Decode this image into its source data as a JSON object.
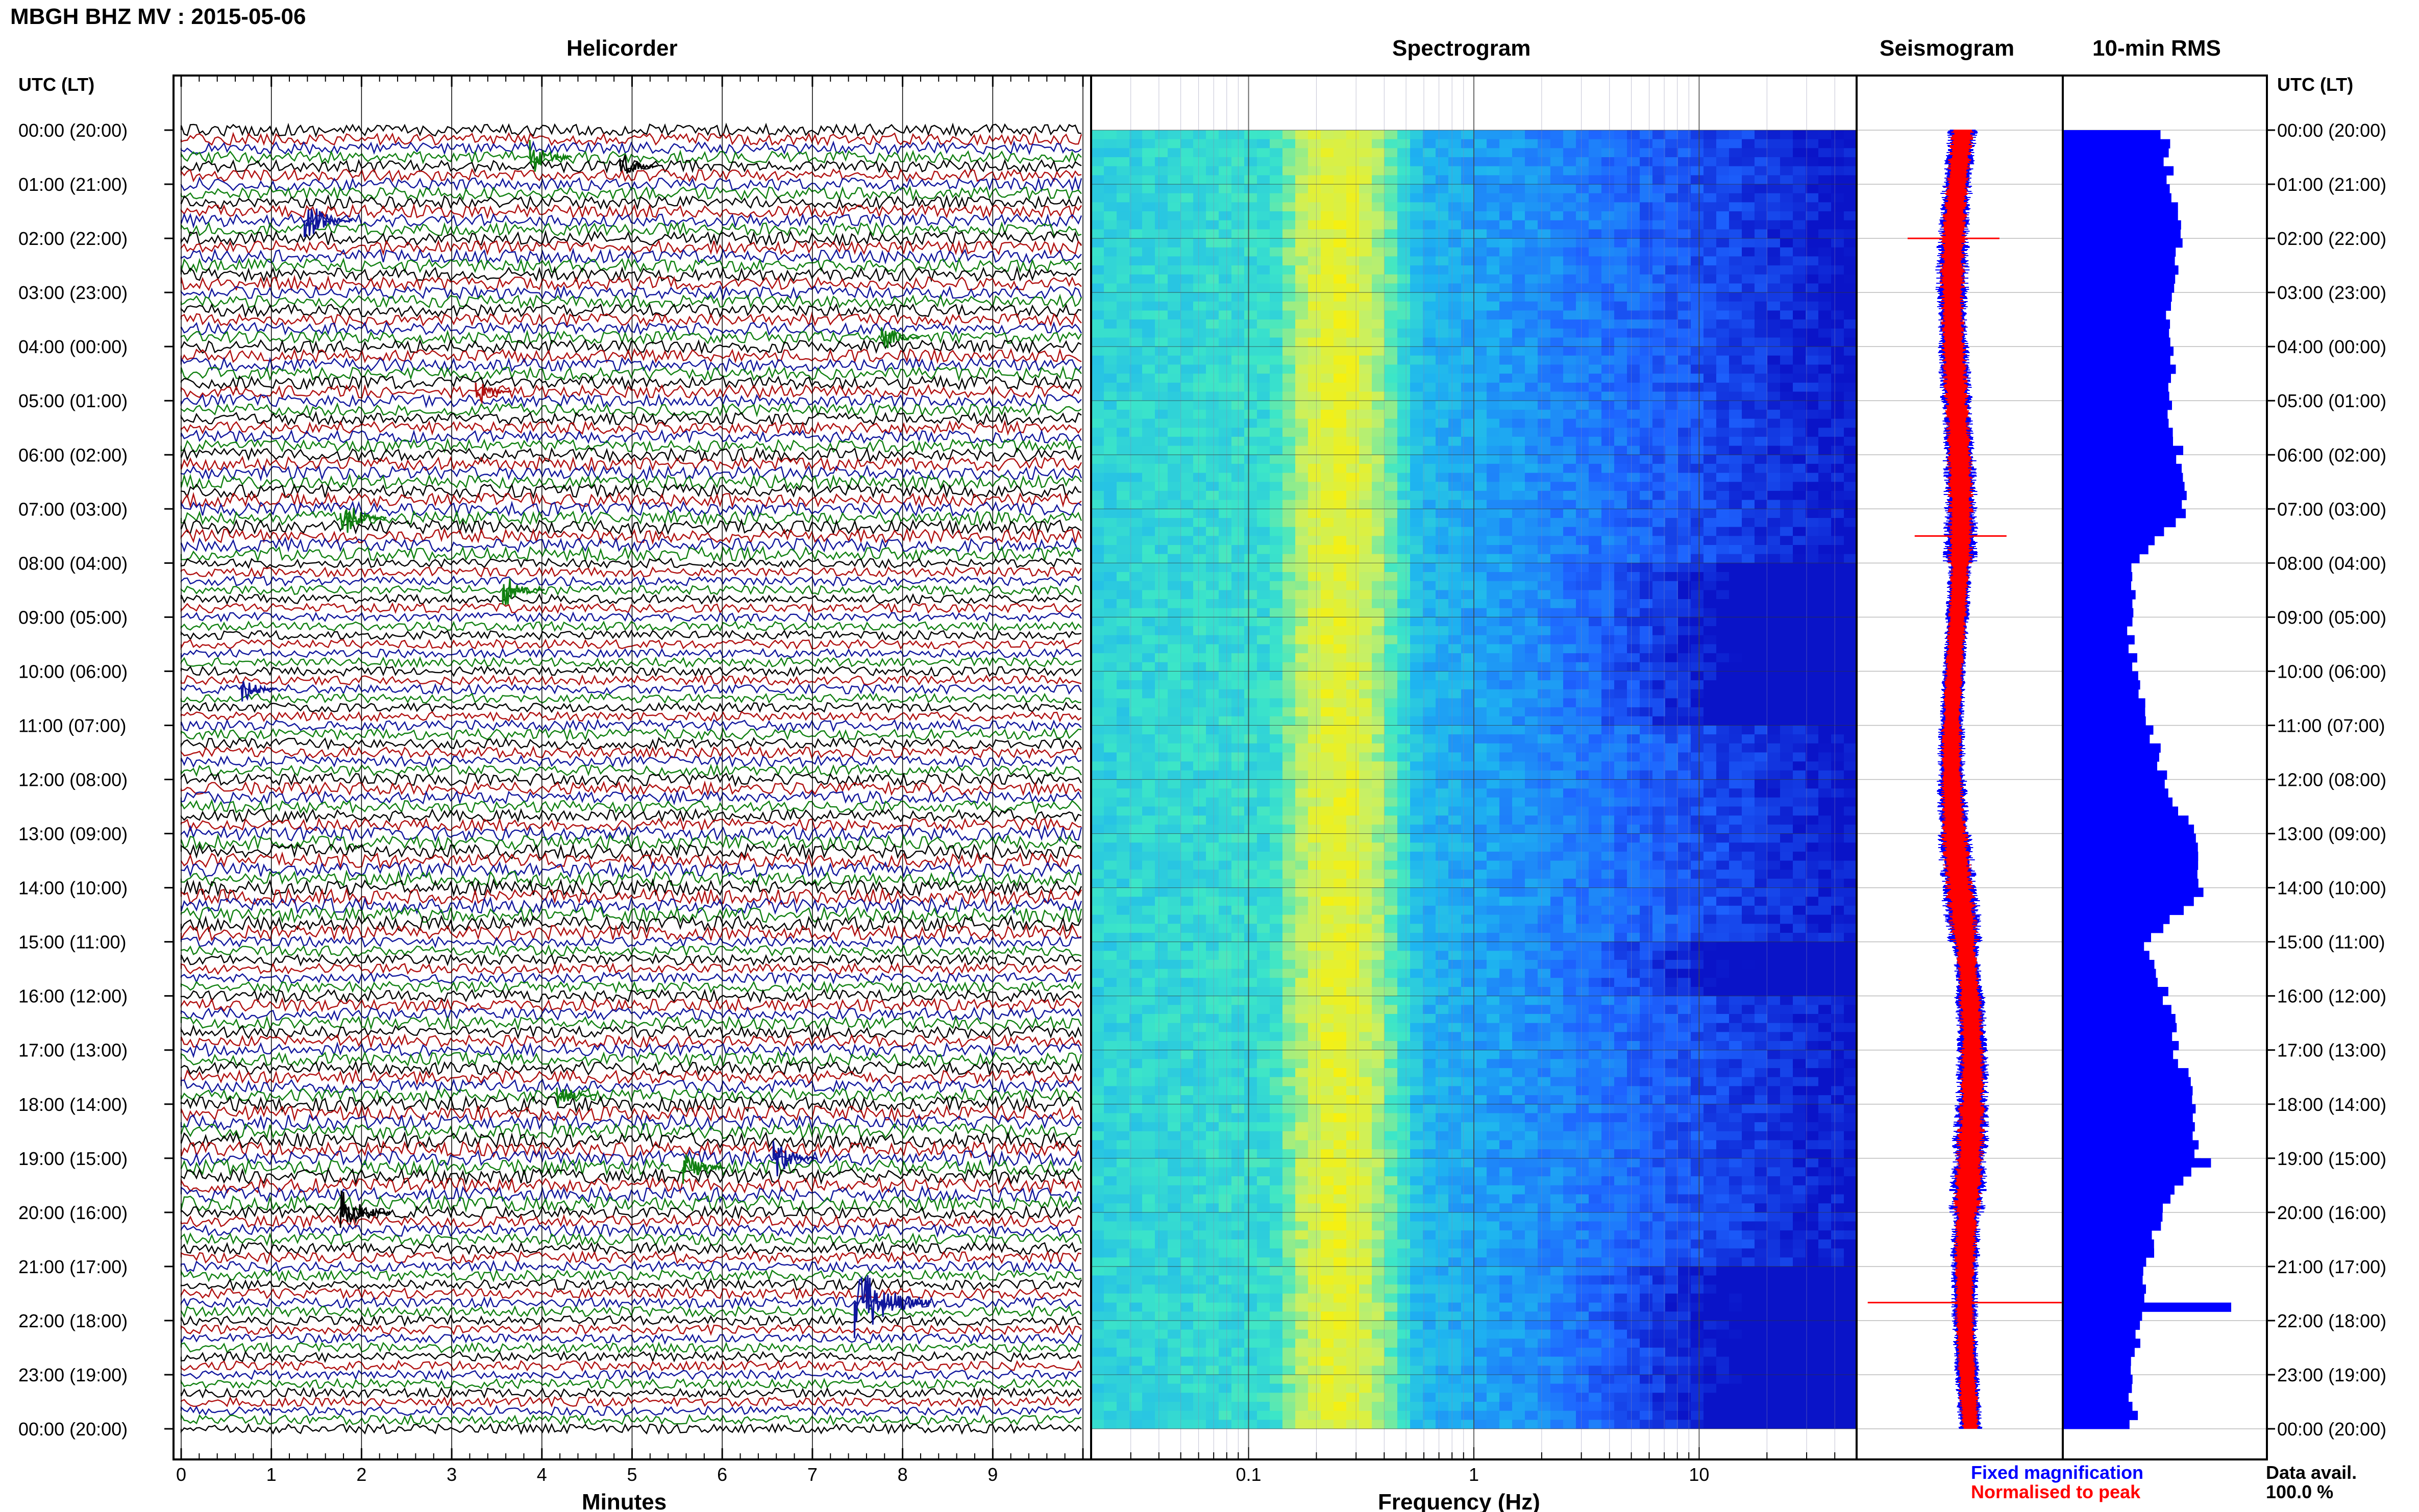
{
  "header": {
    "station_title": "MBGH BHZ MV : 2015-05-06"
  },
  "panels": {
    "helicorder_title": "Helicorder",
    "spectrogram_title": "Spectrogram",
    "seismogram_title": "Seismogram",
    "rms_title": "10-min RMS"
  },
  "axes": {
    "left_time_header": "UTC (LT)",
    "right_time_header": "UTC (LT)",
    "time_labels": [
      "00:00 (20:00)",
      "01:00 (21:00)",
      "02:00 (22:00)",
      "03:00 (23:00)",
      "04:00 (00:00)",
      "05:00 (01:00)",
      "06:00 (02:00)",
      "07:00 (03:00)",
      "08:00 (04:00)",
      "09:00 (05:00)",
      "10:00 (06:00)",
      "11:00 (07:00)",
      "12:00 (08:00)",
      "13:00 (09:00)",
      "14:00 (10:00)",
      "15:00 (11:00)",
      "16:00 (12:00)",
      "17:00 (13:00)",
      "18:00 (14:00)",
      "19:00 (15:00)",
      "20:00 (16:00)",
      "21:00 (17:00)",
      "22:00 (18:00)",
      "23:00 (19:00)",
      "00:00 (20:00)"
    ],
    "minutes_ticks": [
      "0",
      "1",
      "2",
      "3",
      "4",
      "5",
      "6",
      "7",
      "8",
      "9"
    ],
    "minutes_label": "Minutes",
    "freq_ticks": [
      "0.1",
      "1",
      "10"
    ],
    "freq_label": "Frequency (Hz)"
  },
  "legend": {
    "fixed_magnification": "Fixed magnification",
    "normalised_to_peak": "Normalised to peak",
    "data_avail_label": "Data avail.",
    "data_avail_value": "100.0 %"
  },
  "colors": {
    "trace_cycle": [
      "#000000",
      "#b01010",
      "#10169c",
      "#108010"
    ],
    "fixed": "#0000ff",
    "normalised": "#ff0000",
    "rms_bar": "#0000ff"
  },
  "chart_data": [
    {
      "type": "line",
      "title": "Helicorder",
      "xlabel": "Minutes",
      "xlim": [
        0,
        10
      ],
      "ylabel": "UTC (LT)",
      "rows_per_hour": 6,
      "row_minutes": 10,
      "events": [
        {
          "time": "00:30",
          "minute": 3.9,
          "amp": 0.9
        },
        {
          "time": "00:40",
          "minute": 4.9,
          "amp": 0.7
        },
        {
          "time": "01:40",
          "minute": 1.4,
          "amp": 1.2
        },
        {
          "time": "03:50",
          "minute": 7.8,
          "amp": 0.7
        },
        {
          "time": "04:50",
          "minute": 3.3,
          "amp": 0.6
        },
        {
          "time": "07:10",
          "minute": 1.8,
          "amp": 1.1
        },
        {
          "time": "08:30",
          "minute": 3.6,
          "amp": 0.9
        },
        {
          "time": "10:20",
          "minute": 0.7,
          "amp": 0.6
        },
        {
          "time": "17:50",
          "minute": 4.2,
          "amp": 0.8
        },
        {
          "time": "19:10",
          "minute": 5.6,
          "amp": 0.9
        },
        {
          "time": "19:00",
          "minute": 6.6,
          "amp": 1.0
        },
        {
          "time": "20:00",
          "minute": 1.8,
          "amp": 1.3
        },
        {
          "time": "21:40",
          "minute": 7.5,
          "amp": 2.6
        }
      ]
    },
    {
      "type": "heatmap",
      "title": "Spectrogram",
      "xlabel": "Frequency (Hz)",
      "x_scale": "log",
      "xlim": [
        0.02,
        50
      ],
      "colormap": [
        "#0a14c8",
        "#1e64ff",
        "#1eb4f0",
        "#3ce6c8",
        "#c8f064",
        "#fff000"
      ],
      "peak_band_hz": [
        0.15,
        0.35
      ],
      "quiet_periods_utc": [
        "08:00-11:00",
        "15:00-16:00",
        "21:00-00:00"
      ]
    },
    {
      "type": "line",
      "title": "Seismogram",
      "series": [
        {
          "name": "Fixed magnification"
        },
        {
          "name": "Normalised to peak"
        }
      ],
      "spikes_utc": [
        "02:00",
        "07:30",
        "21:40"
      ]
    },
    {
      "type": "bar",
      "title": "10-min RMS",
      "orientation": "horizontal",
      "hours_utc": [
        0,
        1,
        2,
        3,
        4,
        5,
        6,
        7,
        8,
        9,
        10,
        11,
        12,
        13,
        14,
        15,
        16,
        17,
        18,
        19,
        20,
        21,
        22,
        23
      ],
      "hourly_rms_rel": [
        0.6,
        0.65,
        0.7,
        0.62,
        0.66,
        0.62,
        0.7,
        0.72,
        0.42,
        0.4,
        0.42,
        0.52,
        0.62,
        0.78,
        0.82,
        0.5,
        0.62,
        0.68,
        0.8,
        0.8,
        0.58,
        0.5,
        0.45,
        0.42
      ],
      "spikes": [
        {
          "time": "19:00",
          "rms_rel": 0.88
        },
        {
          "time": "21:40",
          "rms_rel": 1.0
        }
      ]
    }
  ]
}
